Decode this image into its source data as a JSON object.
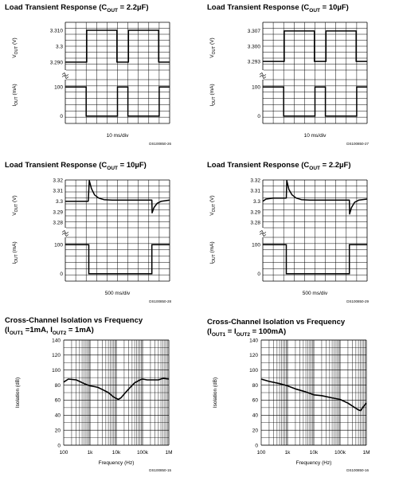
{
  "chart_data": [
    {
      "type": "line",
      "title": "Load Transient Response (COUT = 2.2µF)",
      "title_parts": [
        "Load Transient Response (C",
        "OUT",
        " = 2.2µF)"
      ],
      "xlabel": "10 ms/div",
      "doc_id": "DS100850-26",
      "top": {
        "ylabel": "VOUT (V)",
        "ylabel_main": "V",
        "ylabel_sub": "OUT",
        "ylabel_unit": " (V)",
        "ylim": [
          3.285,
          3.315
        ],
        "ticks": [
          3.31,
          3.3,
          3.29
        ],
        "tick_labels": [
          "3.310",
          "3.3",
          "3.290"
        ]
      },
      "bottom": {
        "ylabel": "IOUT (mA)",
        "ylabel_main": "I",
        "ylabel_sub": "OUT",
        "ylabel_unit": " (mA)",
        "ylim": [
          -25,
          125
        ],
        "ticks": [
          100,
          0
        ],
        "tick_labels": [
          "100",
          "0"
        ]
      },
      "x_divisions": 10,
      "series": [
        {
          "values_top": [
            [
              0,
              3.29
            ],
            [
              2.05,
              3.29
            ],
            [
              2.05,
              3.31
            ],
            [
              4.95,
              3.31
            ],
            [
              4.95,
              3.29
            ],
            [
              6.05,
              3.29
            ],
            [
              6.05,
              3.31
            ],
            [
              8.95,
              3.31
            ],
            [
              8.95,
              3.29
            ],
            [
              10,
              3.29
            ]
          ],
          "values_bottom": [
            [
              0,
              100
            ],
            [
              2,
              100
            ],
            [
              2,
              0
            ],
            [
              5,
              0
            ],
            [
              5,
              100
            ],
            [
              6,
              100
            ],
            [
              6,
              0
            ],
            [
              9,
              0
            ],
            [
              9,
              100
            ],
            [
              10,
              100
            ]
          ]
        }
      ]
    },
    {
      "type": "line",
      "title": "Load Transient Response (COUT = 10µF)",
      "title_parts": [
        "Load Transient Response (C",
        "OUT",
        " = 10µF)"
      ],
      "xlabel": "10 ms/div",
      "doc_id": "DS100850-27",
      "top": {
        "ylabel": "VOUT (V)",
        "ylabel_main": "V",
        "ylabel_sub": "OUT",
        "ylabel_unit": " (V)",
        "ylim": [
          3.289,
          3.311
        ],
        "ticks": [
          3.307,
          3.3,
          3.293
        ],
        "tick_labels": [
          "3.307",
          "3.300",
          "3.293"
        ]
      },
      "bottom": {
        "ylabel": "IOUT (mA)",
        "ylabel_main": "I",
        "ylabel_sub": "OUT",
        "ylabel_unit": " (mA)",
        "ylim": [
          -25,
          125
        ],
        "ticks": [
          100,
          0
        ],
        "tick_labels": [
          "100",
          "0"
        ]
      },
      "x_divisions": 10,
      "series": [
        {
          "values_top": [
            [
              0,
              3.293
            ],
            [
              2.05,
              3.293
            ],
            [
              2.05,
              3.307
            ],
            [
              4.95,
              3.307
            ],
            [
              4.95,
              3.293
            ],
            [
              6.05,
              3.293
            ],
            [
              6.05,
              3.307
            ],
            [
              8.95,
              3.307
            ],
            [
              8.95,
              3.293
            ],
            [
              10,
              3.293
            ]
          ],
          "values_bottom": [
            [
              0,
              100
            ],
            [
              2,
              100
            ],
            [
              2,
              0
            ],
            [
              5,
              0
            ],
            [
              5,
              100
            ],
            [
              6,
              100
            ],
            [
              6,
              0
            ],
            [
              9,
              0
            ],
            [
              9,
              100
            ],
            [
              10,
              100
            ]
          ]
        }
      ]
    },
    {
      "type": "line",
      "title": "Load Transient Response (COUT = 10µF)",
      "title_parts": [
        "Load Transient Response (C",
        "OUT",
        " = 10µF)"
      ],
      "xlabel": "500 ms/div",
      "doc_id": "DS100850-28",
      "top": {
        "ylabel": "VOUT (V)",
        "ylabel_main": "V",
        "ylabel_sub": "OUT",
        "ylabel_unit": " (V)",
        "ylim": [
          3.275,
          3.32
        ],
        "ticks": [
          3.32,
          3.31,
          3.3,
          3.29,
          3.28
        ],
        "tick_labels": [
          "3.32",
          "3.31",
          "3.3",
          "3.29",
          "3.28"
        ]
      },
      "bottom": {
        "ylabel": "IOUT (mA)",
        "ylabel_main": "I",
        "ylabel_sub": "OUT",
        "ylabel_unit": " (mA)",
        "ylim": [
          -25,
          125
        ],
        "ticks": [
          100,
          0
        ],
        "tick_labels": [
          "100",
          "0"
        ]
      },
      "x_divisions": 10,
      "series": [
        {
          "values_top": [
            [
              0,
              3.3
            ],
            [
              2.2,
              3.3
            ],
            [
              2.3,
              3.3195
            ],
            [
              2.5,
              3.312
            ],
            [
              2.8,
              3.306
            ],
            [
              3.2,
              3.303
            ],
            [
              3.7,
              3.3015
            ],
            [
              4.5,
              3.301
            ],
            [
              8.3,
              3.301
            ],
            [
              8.32,
              3.289
            ],
            [
              8.5,
              3.294
            ],
            [
              8.8,
              3.298
            ],
            [
              9.2,
              3.3
            ],
            [
              10,
              3.301
            ]
          ],
          "values_bottom": [
            [
              0,
              100
            ],
            [
              2.25,
              100
            ],
            [
              2.25,
              0
            ],
            [
              8.3,
              0
            ],
            [
              8.3,
              100
            ],
            [
              10,
              100
            ]
          ]
        }
      ]
    },
    {
      "type": "line",
      "title": "Load Transient Response (COUT = 2.2µF)",
      "title_parts": [
        "Load Transient Response (C",
        "OUT",
        " = 2.2µF)"
      ],
      "xlabel": "500 ms/div",
      "doc_id": "DS100850-29",
      "top": {
        "ylabel": "VOUT (V)",
        "ylabel_main": "V",
        "ylabel_sub": "OUT",
        "ylabel_unit": " (V)",
        "ylim": [
          3.275,
          3.32
        ],
        "ticks": [
          3.32,
          3.31,
          3.3,
          3.29,
          3.28
        ],
        "tick_labels": [
          "3.32",
          "3.31",
          "3.3",
          "3.29",
          "3.28"
        ]
      },
      "bottom": {
        "ylabel": "IOUT (mA)",
        "ylabel_main": "I",
        "ylabel_sub": "OUT",
        "ylabel_unit": " (mA)",
        "ylim": [
          -25,
          125
        ],
        "ticks": [
          100,
          0
        ],
        "tick_labels": [
          "100",
          "0"
        ]
      },
      "x_divisions": 10,
      "series": [
        {
          "values_top": [
            [
              0,
              3.3
            ],
            [
              0.3,
              3.302
            ],
            [
              1.0,
              3.303
            ],
            [
              2.0,
              3.303
            ],
            [
              2.25,
              3.303
            ],
            [
              2.3,
              3.3195
            ],
            [
              2.5,
              3.311
            ],
            [
              2.8,
              3.306
            ],
            [
              3.2,
              3.303
            ],
            [
              3.7,
              3.3015
            ],
            [
              4.5,
              3.301
            ],
            [
              8.3,
              3.301
            ],
            [
              8.32,
              3.288
            ],
            [
              8.5,
              3.294
            ],
            [
              8.8,
              3.299
            ],
            [
              9.2,
              3.301
            ],
            [
              10,
              3.302
            ]
          ],
          "values_bottom": [
            [
              0,
              100
            ],
            [
              2.25,
              100
            ],
            [
              2.25,
              0
            ],
            [
              8.3,
              0
            ],
            [
              8.3,
              100
            ],
            [
              10,
              100
            ]
          ]
        }
      ]
    },
    {
      "type": "line",
      "title": "Cross-Channel Isolation vs Frequency",
      "title2_parts": [
        "(I",
        "OUT1",
        " =1mA, I",
        "OUT2",
        " = 1mA)"
      ],
      "xlabel": "Frequency (Hz)",
      "ylabel": "Isolation (dB)",
      "doc_id": "DS100850-15",
      "x_scale": "log",
      "xlim": [
        100,
        1000000
      ],
      "x_tick_labels": [
        "100",
        "1k",
        "10k",
        "100k",
        "1M"
      ],
      "ylim": [
        0,
        140
      ],
      "y_ticks": [
        0,
        20,
        40,
        60,
        80,
        100,
        120,
        140
      ],
      "series": [
        {
          "x": [
            100,
            150,
            300,
            600,
            1000,
            1500,
            2000,
            3000,
            5000,
            8000,
            12000,
            15000,
            20000,
            30000,
            50000,
            80000,
            100000,
            150000,
            250000,
            400000,
            600000,
            1000000
          ],
          "y": [
            84,
            88,
            87,
            82,
            79,
            78,
            77,
            74,
            70,
            64,
            61,
            63,
            68,
            75,
            83,
            87,
            88,
            87,
            87,
            87,
            89,
            88
          ]
        }
      ]
    },
    {
      "type": "line",
      "title": "Cross-Channel Isolation vs Frequency",
      "title2_parts": [
        "(I",
        "OUT1",
        " = I",
        "OUT2",
        " = 100mA)"
      ],
      "xlabel": "Frequency (Hz)",
      "ylabel": "Isolation (dB)",
      "doc_id": "DS100850-16",
      "x_scale": "log",
      "xlim": [
        100,
        1000000
      ],
      "x_tick_labels": [
        "100",
        "1k",
        "10k",
        "100k",
        "1M"
      ],
      "ylim": [
        0,
        140
      ],
      "y_ticks": [
        0,
        20,
        40,
        60,
        80,
        100,
        120,
        140
      ],
      "series": [
        {
          "x": [
            100,
            200,
            500,
            1000,
            2000,
            5000,
            10000,
            20000,
            50000,
            100000,
            200000,
            300000,
            500000,
            600000,
            800000,
            1000000
          ],
          "y": [
            88,
            85,
            82,
            79,
            75,
            71,
            67,
            66,
            63,
            61,
            56,
            52,
            47,
            46,
            52,
            56
          ]
        }
      ]
    }
  ]
}
